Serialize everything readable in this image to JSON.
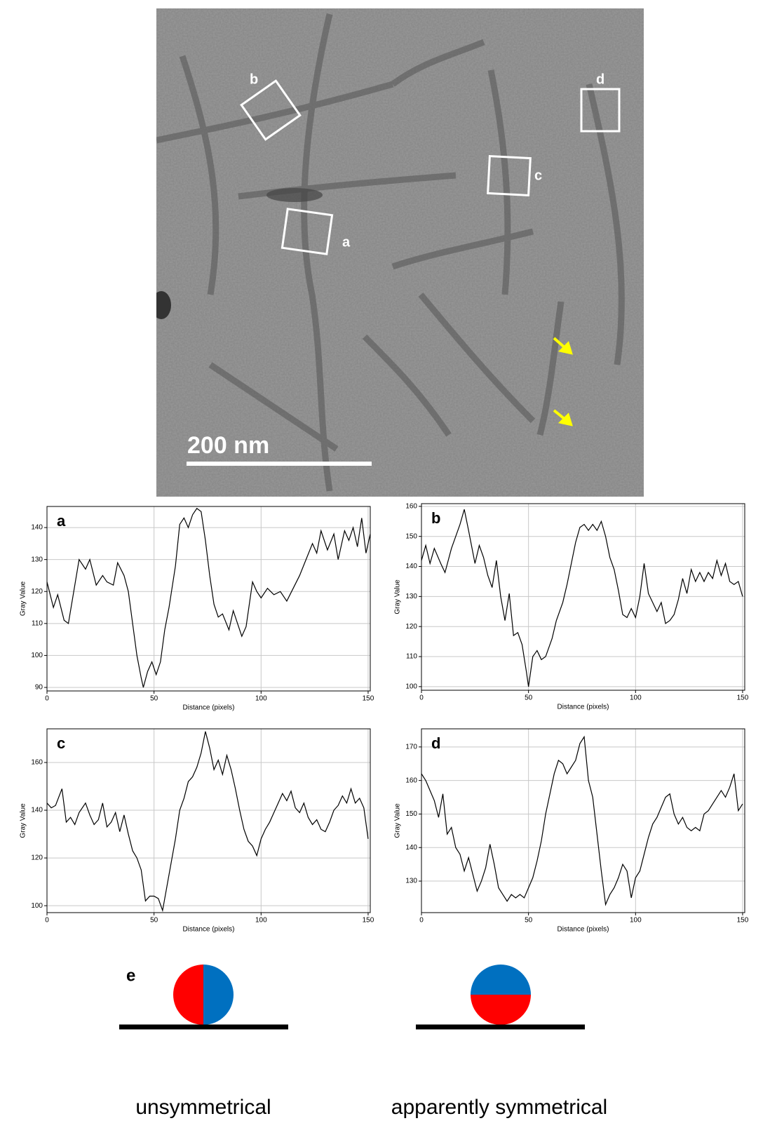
{
  "chart_data": [
    {
      "type": "line",
      "title": "a",
      "x_label": "Distance (pixels)",
      "y_label": "Gray Value",
      "x": [
        0,
        3,
        5,
        8,
        10,
        13,
        15,
        18,
        20,
        23,
        26,
        28,
        31,
        33,
        36,
        38,
        40,
        42,
        44,
        45,
        47,
        49,
        51,
        53,
        55,
        57,
        60,
        62,
        64,
        66,
        68,
        70,
        72,
        74,
        76,
        78,
        80,
        82,
        85,
        87,
        89,
        91,
        93,
        96,
        98,
        100,
        103,
        106,
        109,
        112,
        115,
        118,
        121,
        124,
        126,
        128,
        131,
        134,
        136,
        139,
        141,
        143,
        145,
        147,
        149,
        151
      ],
      "series": [
        {
          "color": "#000000",
          "values": [
            123,
            115,
            119,
            111,
            110,
            122,
            130,
            127,
            130,
            122,
            125,
            123,
            122,
            129,
            125,
            120,
            110,
            100,
            93,
            90,
            95,
            98,
            94,
            98,
            108,
            115,
            128,
            141,
            143,
            140,
            144,
            146,
            145,
            136,
            125,
            116,
            112,
            113,
            108,
            114,
            110,
            106,
            109,
            123,
            120,
            118,
            121,
            119,
            120,
            117,
            121,
            125,
            130,
            135,
            132,
            139,
            133,
            138,
            130,
            139,
            136,
            140,
            134,
            143,
            132,
            138
          ]
        }
      ],
      "xlim": [
        0,
        151
      ],
      "ylim": [
        88.9,
        146.6
      ],
      "xticks": [
        0,
        50,
        100,
        150
      ],
      "yticks": [
        90,
        100,
        110,
        120,
        130,
        140
      ],
      "grid": true
    },
    {
      "type": "line",
      "title": "b",
      "x_label": "Distance (pixels)",
      "y_label": "Gray Value",
      "x": [
        0,
        2,
        4,
        6,
        9,
        11,
        14,
        16,
        18,
        20,
        22,
        25,
        27,
        29,
        31,
        33,
        35,
        37,
        39,
        41,
        43,
        45,
        47,
        49,
        50,
        52,
        54,
        56,
        58,
        61,
        63,
        66,
        68,
        70,
        72,
        74,
        76,
        78,
        80,
        82,
        84,
        86,
        88,
        90,
        92,
        94,
        96,
        98,
        100,
        102,
        104,
        106,
        108,
        110,
        112,
        114,
        116,
        118,
        120,
        122,
        124,
        126,
        128,
        130,
        132,
        134,
        136,
        138,
        140,
        142,
        144,
        146,
        148,
        150
      ],
      "series": [
        {
          "color": "#000000",
          "values": [
            142,
            147,
            141,
            146,
            141,
            138,
            146,
            150,
            154,
            159,
            152,
            141,
            147,
            143,
            137,
            133,
            142,
            130,
            122,
            131,
            117,
            118,
            114,
            105,
            100,
            110,
            112,
            109,
            110,
            116,
            122,
            128,
            134,
            141,
            148,
            153,
            154,
            152,
            154,
            152,
            155,
            150,
            143,
            139,
            132,
            124,
            123,
            126,
            123,
            130,
            141,
            131,
            128,
            125,
            128,
            121,
            122,
            124,
            129,
            136,
            131,
            139,
            135,
            138,
            135,
            138,
            136,
            142,
            137,
            141,
            135,
            134,
            135,
            130
          ]
        }
      ],
      "xlim": [
        0,
        151
      ],
      "ylim": [
        98.8,
        160.9
      ],
      "xticks": [
        0,
        50,
        100,
        150
      ],
      "yticks": [
        100,
        110,
        120,
        130,
        140,
        150,
        160
      ],
      "grid": true
    },
    {
      "type": "line",
      "title": "c",
      "x_label": "Distance (pixels)",
      "y_label": "Gray Value",
      "x": [
        0,
        2,
        4,
        7,
        9,
        11,
        13,
        15,
        18,
        20,
        22,
        24,
        26,
        28,
        30,
        32,
        34,
        36,
        38,
        40,
        42,
        44,
        46,
        48,
        50,
        52,
        54,
        56,
        58,
        60,
        62,
        64,
        66,
        68,
        70,
        72,
        74,
        76,
        78,
        80,
        82,
        84,
        86,
        88,
        90,
        92,
        94,
        96,
        98,
        100,
        102,
        104,
        106,
        108,
        110,
        112,
        114,
        116,
        118,
        120,
        122,
        124,
        126,
        128,
        130,
        132,
        134,
        136,
        138,
        140,
        142,
        144,
        146,
        148,
        150
      ],
      "series": [
        {
          "color": "#000000",
          "values": [
            143,
            141,
            142,
            149,
            135,
            137,
            134,
            139,
            143,
            138,
            134,
            136,
            143,
            133,
            135,
            139,
            131,
            138,
            130,
            123,
            120,
            115,
            102,
            104,
            104,
            103,
            98,
            108,
            118,
            128,
            140,
            145,
            152,
            154,
            158,
            164,
            173,
            166,
            157,
            161,
            155,
            163,
            157,
            149,
            140,
            132,
            127,
            125,
            121,
            128,
            132,
            135,
            139,
            143,
            147,
            144,
            148,
            141,
            139,
            143,
            137,
            134,
            136,
            132,
            131,
            135,
            140,
            142,
            146,
            143,
            149,
            143,
            145,
            141,
            128
          ]
        }
      ],
      "xlim": [
        0,
        151
      ],
      "ylim": [
        97.1,
        174.1
      ],
      "xticks": [
        0,
        50,
        100,
        150
      ],
      "yticks": [
        100,
        120,
        140,
        160
      ],
      "grid": true
    },
    {
      "type": "line",
      "title": "d",
      "x_label": "Distance (pixels)",
      "y_label": "Gray Value",
      "x": [
        0,
        2,
        4,
        6,
        8,
        10,
        12,
        14,
        16,
        18,
        20,
        22,
        24,
        26,
        28,
        30,
        32,
        34,
        36,
        38,
        40,
        42,
        44,
        46,
        48,
        50,
        52,
        54,
        56,
        58,
        60,
        62,
        64,
        66,
        68,
        70,
        72,
        74,
        76,
        78,
        80,
        82,
        84,
        86,
        88,
        90,
        92,
        94,
        96,
        98,
        100,
        102,
        104,
        106,
        108,
        110,
        112,
        114,
        116,
        118,
        120,
        122,
        124,
        126,
        128,
        130,
        132,
        134,
        136,
        138,
        140,
        142,
        144,
        146,
        148,
        150
      ],
      "series": [
        {
          "color": "#000000",
          "values": [
            162,
            160,
            157,
            154,
            149,
            156,
            144,
            146,
            140,
            138,
            133,
            137,
            132,
            127,
            130,
            134,
            141,
            135,
            128,
            126,
            124,
            126,
            125,
            126,
            125,
            128,
            131,
            136,
            142,
            150,
            156,
            162,
            166,
            165,
            162,
            164,
            166,
            171,
            173,
            160,
            155,
            144,
            133,
            123,
            126,
            128,
            131,
            135,
            133,
            125,
            131,
            133,
            138,
            143,
            147,
            149,
            152,
            155,
            156,
            150,
            147,
            149,
            146,
            145,
            146,
            145,
            150,
            151,
            153,
            155,
            157,
            155,
            158,
            162,
            151,
            153
          ]
        }
      ],
      "xlim": [
        0,
        151
      ],
      "ylim": [
        120.6,
        175.4
      ],
      "xticks": [
        0,
        50,
        100,
        150
      ],
      "yticks": [
        130,
        140,
        150,
        160,
        170
      ],
      "grid": true
    }
  ],
  "micrograph": {
    "box_labels": [
      "a",
      "b",
      "c",
      "d"
    ],
    "scale_bar": "200 nm"
  },
  "panel_e": {
    "label": "e",
    "captions": [
      "unsymmetrical",
      "apparently symmetrical"
    ]
  }
}
